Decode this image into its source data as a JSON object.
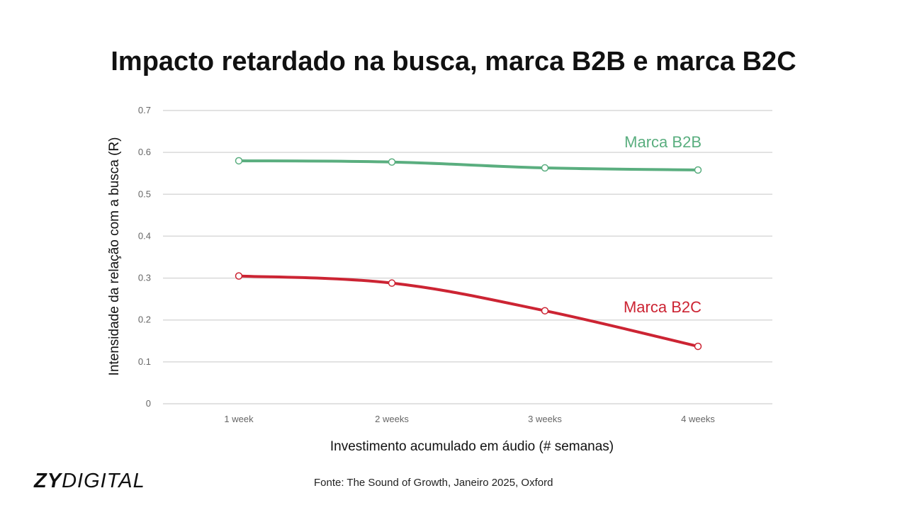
{
  "slide": {
    "title": "Impacto retardado na busca, marca B2B e marca B2C",
    "source": "Fonte: The Sound of Growth, Janeiro 2025, Oxford",
    "logo_bold": "ZY",
    "logo_light": "DIGITAL"
  },
  "chart_data": {
    "type": "line",
    "title": "Impacto retardado na busca, marca B2B e marca B2C",
    "xlabel": "Investimento acumulado em áudio (# semanas)",
    "ylabel": "Intensidade da relação com a busca (R)",
    "categories": [
      "1 week",
      "2 weeks",
      "3 weeks",
      "4 weeks"
    ],
    "ylim": [
      0,
      0.7
    ],
    "yticks": [
      "0",
      "0.1",
      "0.2",
      "0.3",
      "0.4",
      "0.5",
      "0.6",
      "0.7"
    ],
    "grid": true,
    "series": [
      {
        "name": "Marca B2B",
        "values": [
          0.58,
          0.577,
          0.563,
          0.558
        ],
        "color": "#5aae7f"
      },
      {
        "name": "Marca B2C",
        "values": [
          0.305,
          0.288,
          0.222,
          0.137
        ],
        "color": "#cc2433"
      }
    ]
  }
}
